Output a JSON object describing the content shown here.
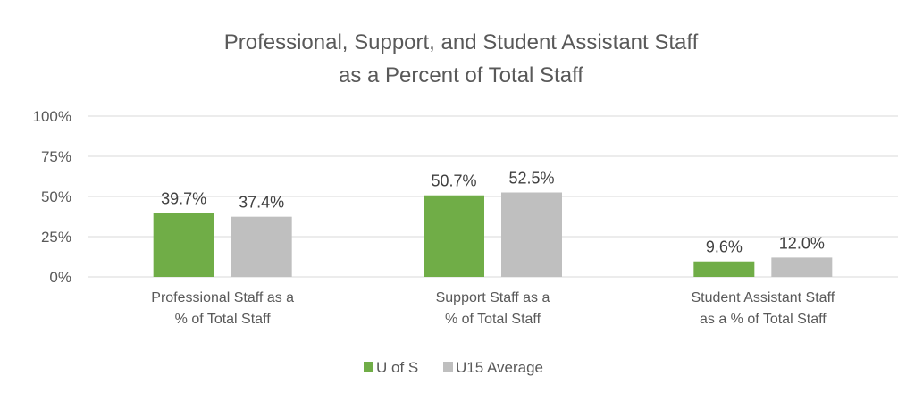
{
  "chart_data": {
    "type": "bar",
    "title": [
      "Professional, Support, and Student Assistant Staff",
      "as a Percent of Total Staff"
    ],
    "categories": [
      [
        "Professional Staff as a",
        "% of Total Staff"
      ],
      [
        "Support Staff as a",
        "% of Total Staff"
      ],
      [
        "Student Assistant Staff",
        "as a % of Total Staff"
      ]
    ],
    "series": [
      {
        "name": "U of S",
        "color": "#70ad47",
        "values": [
          39.7,
          50.7,
          9.6
        ],
        "labels": [
          "39.7%",
          "50.7%",
          "9.6%"
        ]
      },
      {
        "name": "U15 Average",
        "color": "#bfbfbf",
        "values": [
          37.4,
          52.5,
          12.0
        ],
        "labels": [
          "37.4%",
          "52.5%",
          "12.0%"
        ]
      }
    ],
    "ylim": [
      0,
      100
    ],
    "yticks": [
      0,
      25,
      50,
      75,
      100
    ],
    "ytick_labels": [
      "0%",
      "25%",
      "50%",
      "75%",
      "100%"
    ],
    "grid": true,
    "legend_position": "bottom",
    "xlabel": "",
    "ylabel": ""
  }
}
